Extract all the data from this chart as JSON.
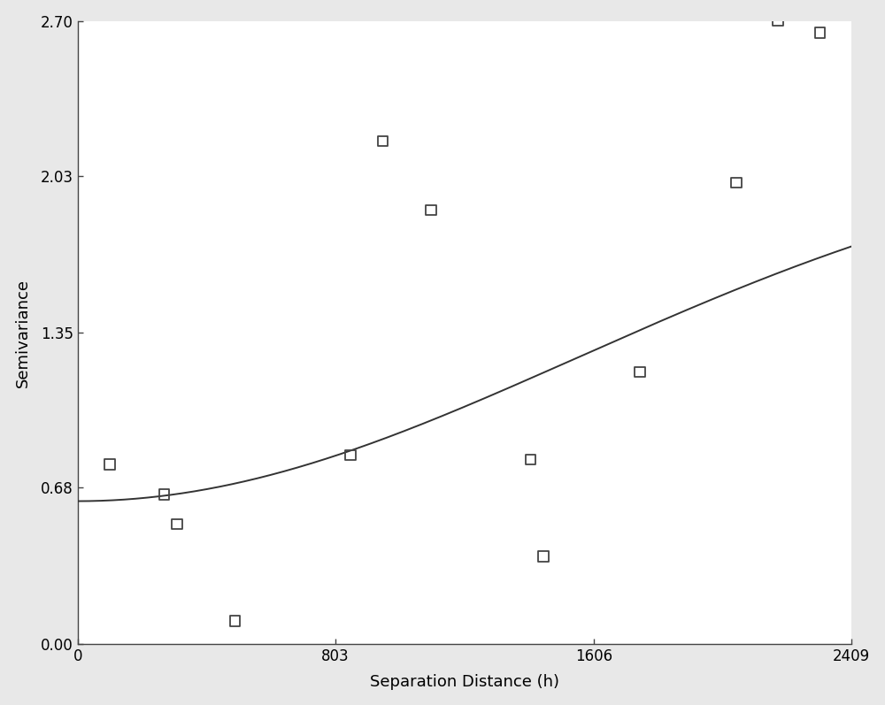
{
  "scatter_x": [
    100,
    270,
    310,
    490,
    850,
    950,
    1100,
    1410,
    1450,
    1750,
    2050,
    2180,
    2310
  ],
  "scatter_y": [
    0.78,
    0.65,
    0.52,
    0.1,
    0.82,
    2.18,
    1.88,
    0.8,
    0.38,
    1.18,
    2.0,
    2.7,
    2.65
  ],
  "curve_nugget": 0.62,
  "curve_sill": 2.2,
  "curve_range": 2200,
  "xlabel": "Separation Distance (h)",
  "ylabel": "Semivariance",
  "xticks": [
    0,
    803,
    1606,
    2409
  ],
  "yticks": [
    0.0,
    0.68,
    1.35,
    2.03,
    2.7
  ],
  "xlim": [
    0,
    2409
  ],
  "ylim": [
    0.0,
    2.7
  ],
  "bg_color": "#e8e8e8",
  "plot_bg": "#ffffff",
  "line_color": "#333333",
  "marker_color": "none",
  "marker_edge_color": "#444444",
  "marker_size": 70,
  "marker_lw": 1.3,
  "axis_label_fontsize": 13,
  "tick_fontsize": 12
}
